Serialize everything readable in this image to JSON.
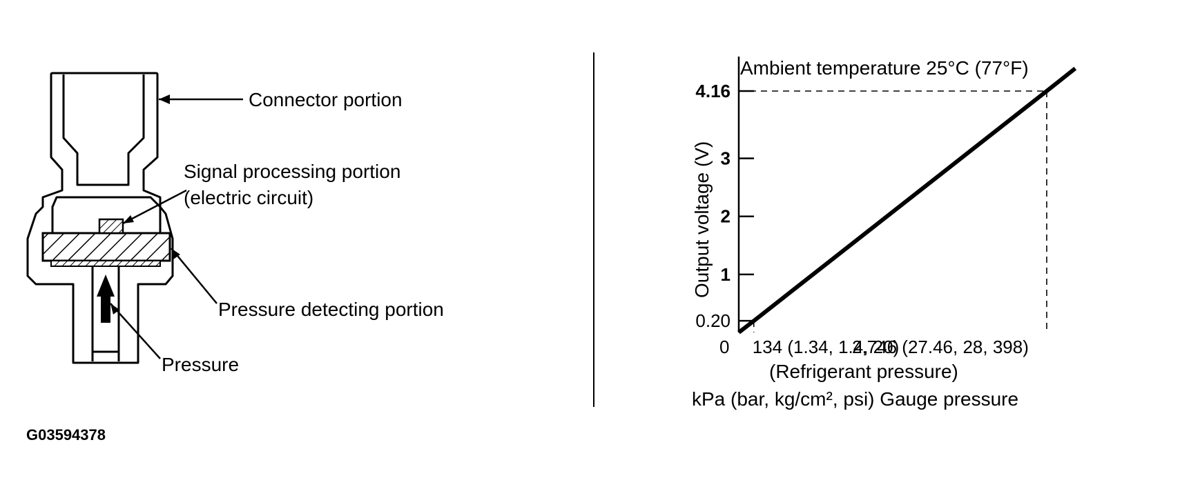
{
  "figure_id": "G03594378",
  "sensor": {
    "labels": {
      "connector": "Connector portion",
      "signal_line1": "Signal processing portion",
      "signal_line2": "(electric circuit)",
      "pressure_detecting": "Pressure detecting portion",
      "pressure": "Pressure"
    }
  },
  "chart_data": {
    "type": "line",
    "title": "Ambient temperature 25°C (77°F)",
    "ylabel": "Output voltage (V)",
    "xlabel_line1": "(Refrigerant pressure)",
    "xlabel_line2": "kPa (bar, kg/cm², psi) Gauge pressure",
    "xlim": [
      0,
      3100
    ],
    "ylim": [
      0,
      4.5
    ],
    "y_ticks": [
      {
        "value": 0.2,
        "label": "0.20"
      },
      {
        "value": 1,
        "label": "1"
      },
      {
        "value": 2,
        "label": "2"
      },
      {
        "value": 3,
        "label": "3"
      },
      {
        "value": 4.16,
        "label": "4.16"
      }
    ],
    "x_ticks": [
      {
        "value": 0,
        "label": "0"
      },
      {
        "value": 134,
        "label": "134 (1.34, 1.4, 20)"
      },
      {
        "value": 2746,
        "label": "2,746 (27.46, 28, 398)"
      }
    ],
    "series": [
      {
        "x": [
          0,
          134,
          2746,
          3000
        ],
        "y": [
          0,
          0.2,
          4.16,
          4.55
        ]
      }
    ],
    "reference_points": [
      {
        "x": 134,
        "y": 0.2
      },
      {
        "x": 2746,
        "y": 4.16
      }
    ]
  }
}
